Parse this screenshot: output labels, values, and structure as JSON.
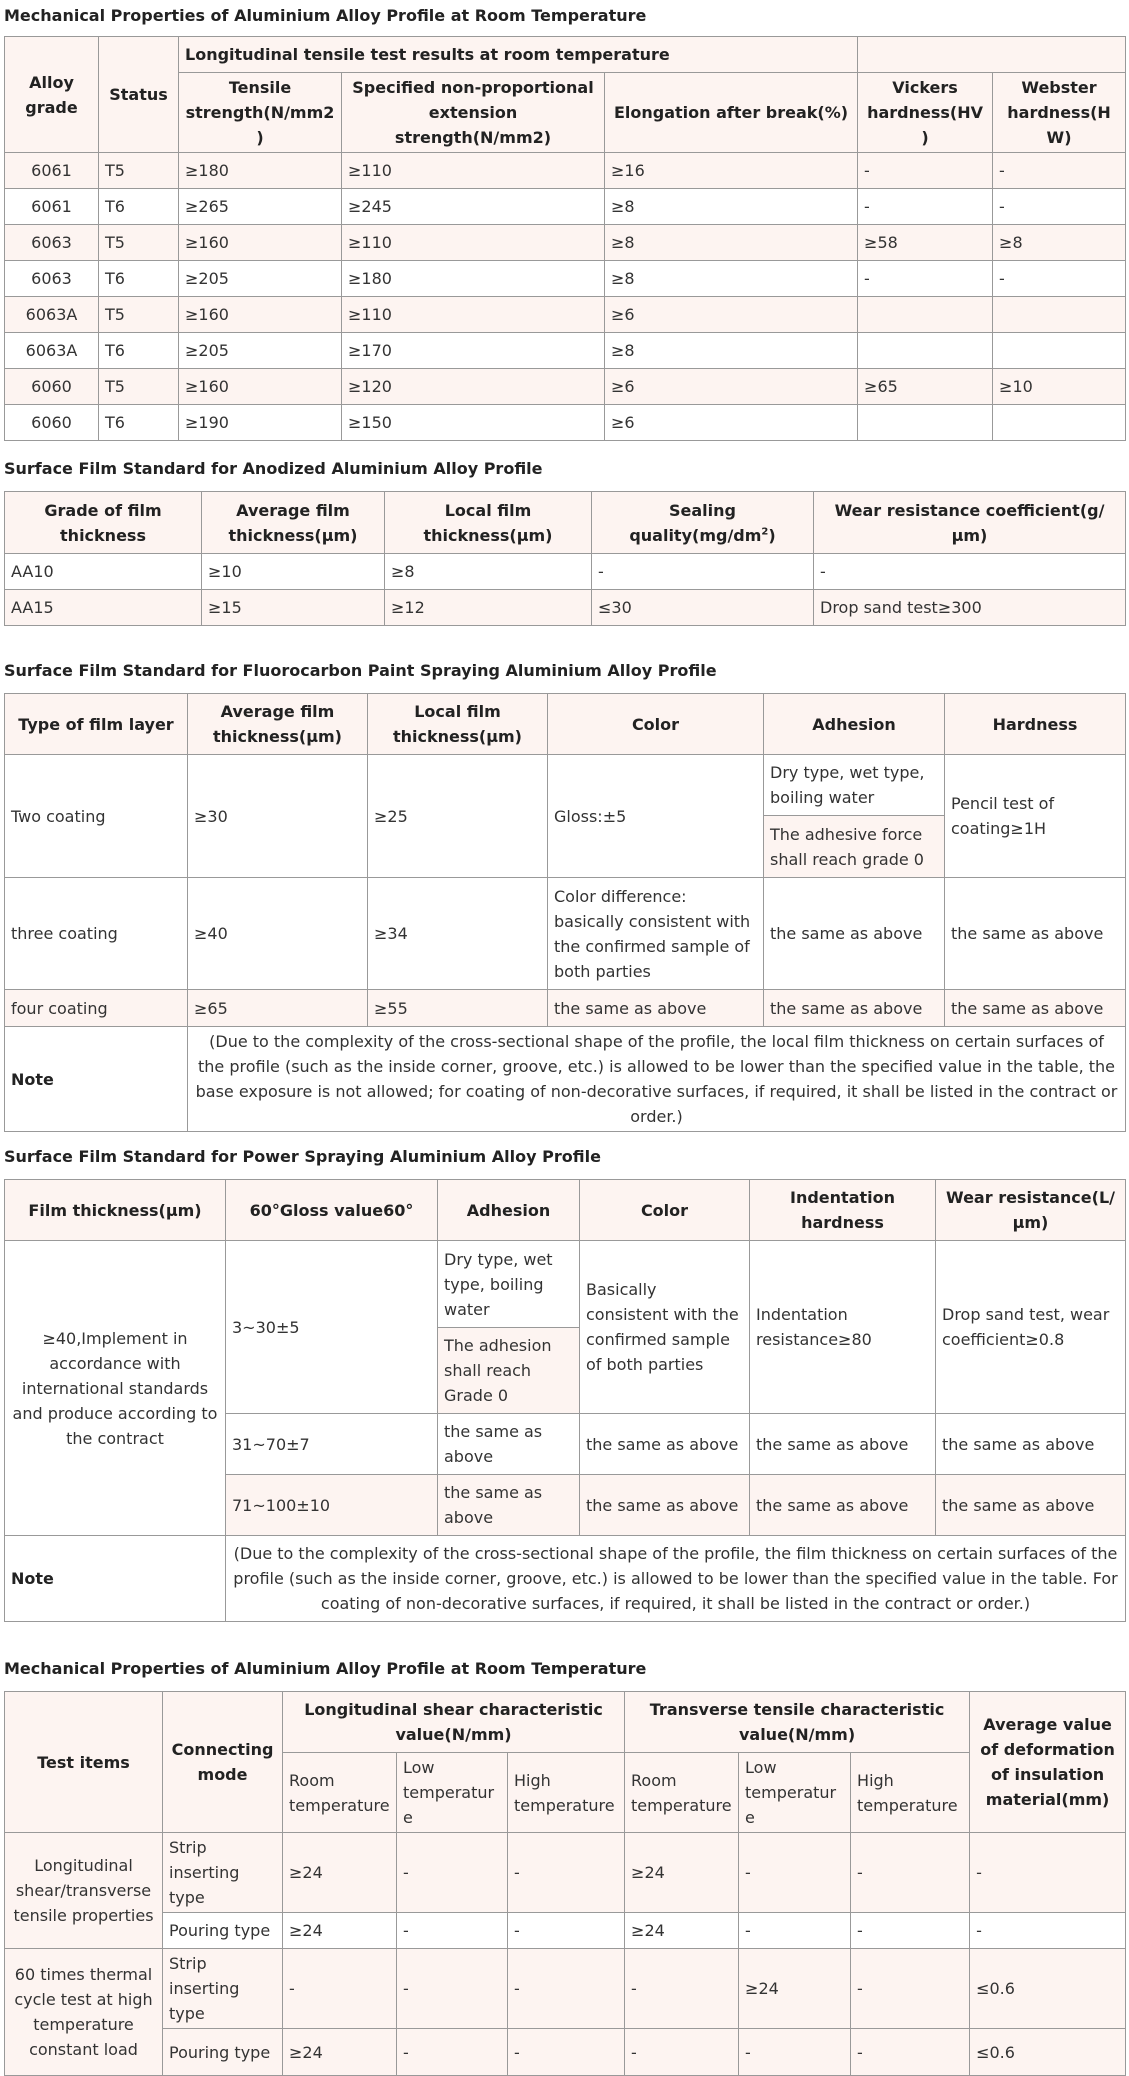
{
  "t1": {
    "title": "Mechanical Properties of Aluminium Alloy Profile at Room Temperature",
    "h_alloy": "Alloy grade",
    "h_status": "Status",
    "h_group": "Longitudinal tensile test results at room temperature",
    "h_tensile": "Tensile strength(N/mm2)",
    "h_specified": "Specified non-proportional extension strength(N/mm2)",
    "h_elong": "Elongation after break(%)",
    "h_vickers": "Vickers hardness(HV)",
    "h_webster": "Webster hardness(HW)",
    "rows": [
      [
        "6061",
        "T5",
        "≥180",
        "≥110",
        "≥16",
        "-",
        "-"
      ],
      [
        "6061",
        "T6",
        "≥265",
        "≥245",
        "≥8",
        "-",
        "-"
      ],
      [
        "6063",
        "T5",
        "≥160",
        "≥110",
        "≥8",
        "≥58",
        "≥8"
      ],
      [
        "6063",
        "T6",
        "≥205",
        "≥180",
        "≥8",
        "-",
        "-"
      ],
      [
        "6063A",
        "T5",
        "≥160",
        "≥110",
        "≥6",
        "",
        ""
      ],
      [
        "6063A",
        "T6",
        "≥205",
        "≥170",
        "≥8",
        "",
        ""
      ],
      [
        "6060",
        "T5",
        "≥160",
        "≥120",
        "≥6",
        "≥65",
        "≥10"
      ],
      [
        "6060",
        "T6",
        "≥190",
        "≥150",
        "≥6",
        "",
        ""
      ]
    ]
  },
  "t2": {
    "title": "Surface Film Standard for Anodized Aluminium Alloy Profile",
    "h_grade": "Grade of film thickness",
    "h_avg": "Average film thickness(μm)",
    "h_local": "Local film thickness(μm)",
    "h_sealing": "Sealing quality(mg/dm",
    "h_sealing_sup": "2",
    "h_sealing_end": ")",
    "h_wear": "Wear resistance coefficient(g/μm)",
    "rows": [
      [
        "AA10",
        "≥10",
        "≥8",
        "-",
        "-"
      ],
      [
        "AA15",
        "≥15",
        "≥12",
        "≤30",
        "Drop sand test≥300"
      ]
    ]
  },
  "t3": {
    "title": "Surface Film Standard for Fluorocarbon Paint Spraying Aluminium Alloy Profile",
    "h_type": "Type of film layer",
    "h_avg": "Average film thickness(μm)",
    "h_local": "Local film thickness(μm)",
    "h_color": "Color",
    "h_adhesion": "Adhesion",
    "h_hardness": "Hardness",
    "r1": {
      "type": "Two coating",
      "avg": "≥30",
      "local": "≥25",
      "color": "Gloss:±5",
      "adh1": "Dry type, wet type, boiling water",
      "adh2": "The adhesive force shall reach grade 0",
      "hardness": "Pencil test of coating≥1H"
    },
    "r2": {
      "type": "three coating",
      "avg": "≥40",
      "local": "≥34",
      "color": "Color difference: basically consistent with the confirmed sample of both parties",
      "adh": "the same as above",
      "hardness": "the same as above"
    },
    "r3": {
      "type": "four coating",
      "avg": "≥65",
      "local": "≥55",
      "color": "the same as above",
      "adh": "the same as above",
      "hardness": "the same as above"
    },
    "note_label": "Note",
    "note_text": "(Due to the complexity of the cross-sectional shape of the profile, the local film thickness on certain surfaces of the profile (such as the inside corner, groove, etc.) is allowed to be lower than the specified value in the table, the base exposure is not allowed; for coating of non-decorative surfaces, if required, it shall be listed in the contract or order.)"
  },
  "t4": {
    "title": "Surface Film Standard for Power Spraying Aluminium Alloy Profile",
    "h_film": "Film thickness(μm)",
    "h_gloss": "60°Gloss value60°",
    "h_adhesion": "Adhesion",
    "h_color": "Color",
    "h_indent": "Indentation hardness",
    "h_wear": "Wear resistance(L/μm)",
    "film": "≥40,Implement in accordance with international standards and produce according to the contract",
    "r1": {
      "gloss": "3~30±5",
      "adh1": "Dry type, wet type, boiling water",
      "adh2": "The adhesion shall reach Grade 0",
      "color": "Basically consistent with the confirmed sample of both parties",
      "indent": "Indentation resistance≥80",
      "wear": "Drop sand test, wear coefficient≥0.8"
    },
    "r2": {
      "gloss": "31~70±7",
      "adh": "the same as above",
      "color": "the same as above",
      "indent": "the same as above",
      "wear": "the same as above"
    },
    "r3": {
      "gloss": "71~100±10",
      "adh": "the same as above",
      "color": "the same as above",
      "indent": "the same as above",
      "wear": "the same as above"
    },
    "note_label": "Note",
    "note_text": "(Due to the complexity of the cross-sectional shape of the profile, the film thickness on certain surfaces of the profile (such as the inside corner, groove, etc.) is allowed to be lower than the specified value in the table. For coating of non-decorative surfaces, if required, it shall be listed in the contract or order.)"
  },
  "t5": {
    "title": "Mechanical Properties of Aluminium Alloy Profile at Room Temperature",
    "h_test": "Test items",
    "h_mode": "Connecting mode",
    "h_long": "Longitudinal shear characteristic value(N/mm)",
    "h_trans": "Transverse tensile characteristic value(N/mm)",
    "h_avg": "Average value of deformation of insulation material(mm)",
    "sub": [
      "Room temperature",
      "Low temperature",
      "High temperature",
      "Room temperature",
      "Low temperature",
      "High temperature"
    ],
    "g1": "Longitudinal shear/transverse tensile properties",
    "g2": "60 times thermal cycle test at high temperature constant load",
    "m_strip": "Strip inserting type",
    "m_pour": "Pouring type",
    "r1": [
      "≥24",
      "-",
      "-",
      "≥24",
      "-",
      "-",
      "-"
    ],
    "r2": [
      "≥24",
      "-",
      "-",
      "≥24",
      "-",
      "-",
      "-"
    ],
    "r3": [
      "-",
      "-",
      "-",
      "-",
      "≥24",
      "-",
      "≤0.6"
    ],
    "r4": [
      "≥24",
      "-",
      "-",
      "-",
      "-",
      "-",
      "≤0.6"
    ]
  }
}
